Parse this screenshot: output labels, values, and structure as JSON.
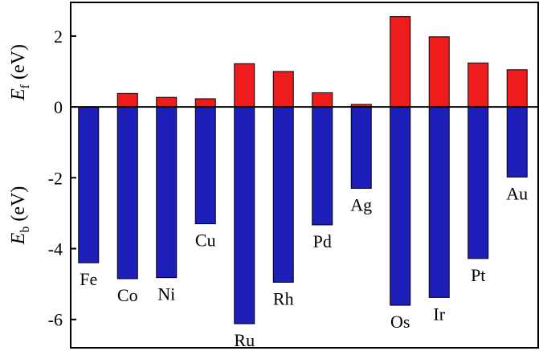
{
  "chart_data": {
    "type": "bar",
    "categories": [
      "Fe",
      "Co",
      "Ni",
      "Cu",
      "Ru",
      "Rh",
      "Pd",
      "Ag",
      "Os",
      "Ir",
      "Pt",
      "Au"
    ],
    "series": [
      {
        "values": [
          0.0,
          0.38,
          0.27,
          0.23,
          1.22,
          1.0,
          0.4,
          0.07,
          2.55,
          1.98,
          1.24,
          1.05
        ],
        "color": "#ee1c1c"
      },
      {
        "values": [
          -4.4,
          -4.85,
          -4.82,
          -3.3,
          -6.12,
          -4.95,
          -3.33,
          -2.3,
          -5.6,
          -5.38,
          -4.28,
          -1.98
        ],
        "color": "#1e1eb8"
      }
    ],
    "y_ticks": [
      "2",
      "0",
      "-2",
      "-4",
      "-6"
    ],
    "y_tick_values": [
      2,
      0,
      -2,
      -4,
      -6
    ],
    "ylim": [
      -6.8,
      2.95
    ],
    "ylabel_top": {
      "main": "E",
      "sub": "f",
      "unit": " (eV)"
    },
    "ylabel_bottom": {
      "main": "E",
      "sub": "b",
      "unit": " (eV)"
    },
    "grid": false,
    "legend": "none"
  }
}
